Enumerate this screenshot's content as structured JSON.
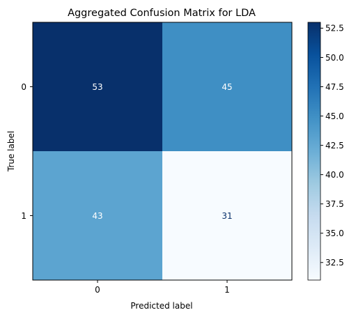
{
  "chart_data": {
    "type": "heatmap",
    "title": "Aggregated Confusion Matrix for LDA",
    "xlabel": "Predicted label",
    "ylabel": "True label",
    "x_categories": [
      "0",
      "1"
    ],
    "y_categories": [
      "0",
      "1"
    ],
    "matrix": [
      [
        53,
        45
      ],
      [
        43,
        31
      ]
    ],
    "colormap": "Blues",
    "colorbar_range": [
      31,
      53
    ],
    "colorbar_ticks": [
      32.5,
      35.0,
      37.5,
      40.0,
      42.5,
      45.0,
      47.5,
      50.0,
      52.5
    ],
    "colorbar_tick_labels": [
      "32.5",
      "35.0",
      "37.5",
      "40.0",
      "42.5",
      "45.0",
      "47.5",
      "50.0",
      "52.5"
    ],
    "grid": false,
    "colors": {
      "low": "#f7fbff",
      "high": "#08306b",
      "text_dark_cell": "#ffffff",
      "text_light_cell": "#08306b"
    }
  }
}
